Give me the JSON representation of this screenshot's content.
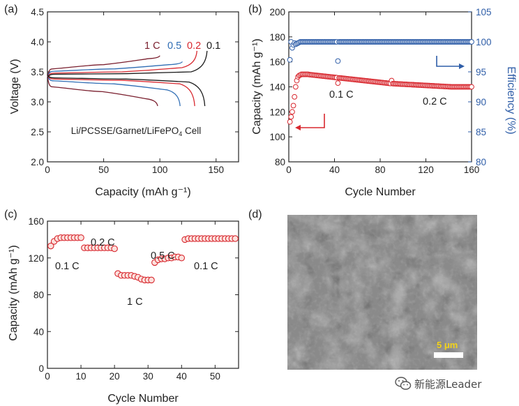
{
  "panels": {
    "a": {
      "label": "(a)",
      "chart_data": {
        "type": "line",
        "xlabel": "Capacity (mAh g⁻¹)",
        "ylabel": "Voltage (V)",
        "xlim": [
          0,
          170
        ],
        "ylim": [
          2.0,
          4.5
        ],
        "xticks": [
          0,
          50,
          100,
          150
        ],
        "yticks": [
          2.0,
          2.5,
          3.0,
          3.5,
          4.0,
          4.5
        ],
        "annotation": "Li/PCSSE/Garnet/LiFePO",
        "annotation_sub": "4",
        "annotation_tail": " Cell",
        "series": [
          {
            "name": "1 C",
            "color": "#7a1f2e",
            "charge_end": 100,
            "charge_v": [
              3.55,
              3.62,
              3.72,
              3.77
            ],
            "discharge_end": 98,
            "discharge_v": [
              3.25,
              3.17,
              3.05,
              2.93
            ]
          },
          {
            "name": "0.5",
            "color": "#2f6db4",
            "charge_end": 120,
            "charge_v": [
              3.51,
              3.55,
              3.62,
              3.67
            ],
            "discharge_end": 118,
            "discharge_v": [
              3.35,
              3.3,
              3.2,
              2.93
            ]
          },
          {
            "name": "0.2",
            "color": "#d8282f",
            "charge_end": 133,
            "charge_v": [
              3.48,
              3.5,
              3.57,
              3.85
            ],
            "discharge_end": 131,
            "discharge_v": [
              3.38,
              3.36,
              3.3,
              2.93
            ]
          },
          {
            "name": "0.1",
            "color": "#1a1a1a",
            "charge_end": 142,
            "charge_v": [
              3.46,
              3.47,
              3.5,
              3.85
            ],
            "discharge_end": 140,
            "discharge_v": [
              3.4,
              3.38,
              3.33,
              2.93
            ]
          }
        ],
        "label_colors": [
          "#7a1f2e",
          "#2f6db4",
          "#d8282f",
          "#1a1a1a"
        ]
      }
    },
    "b": {
      "label": "(b)",
      "chart_data": {
        "type": "scatter",
        "xlabel": "Cycle Number",
        "ylabel": "Capacity (mAh g⁻¹)",
        "y2label": "Efficiency (%)",
        "xlim": [
          0,
          160
        ],
        "ylim": [
          80,
          200
        ],
        "y2lim": [
          80,
          105
        ],
        "xticks": [
          0,
          40,
          80,
          120,
          160
        ],
        "yticks": [
          80,
          100,
          120,
          140,
          160,
          180,
          200
        ],
        "y2ticks": [
          80,
          85,
          90,
          95,
          100,
          105
        ],
        "capacity_color": "#d8282f",
        "efficiency_color": "#2f5ea8",
        "capacity": [
          112,
          116,
          120,
          125,
          132,
          140,
          145,
          148,
          149,
          149.5,
          150,
          150,
          150,
          150,
          150,
          150,
          150,
          149.8,
          149.7,
          149.6,
          149.5,
          149.4,
          149.3,
          149.2,
          149.1,
          149,
          148.9,
          148.8,
          148.7,
          148.6,
          148.5,
          148.4,
          148.3,
          148.2,
          148.1,
          148,
          147.9,
          147.8,
          147.7,
          147.6,
          147.5,
          147.4,
          143,
          147.2,
          147.1,
          147,
          146.9,
          146.8,
          146.7,
          146.6,
          146.5,
          146.4,
          146.3,
          146.2,
          146.1,
          146,
          145.9,
          145.8,
          145.7,
          145.6,
          145.5,
          145.4,
          145.3,
          145.2,
          145.1,
          145,
          144.9,
          144.8,
          144.7,
          144.6,
          144.5,
          144.4,
          144.3,
          144.2,
          144.1,
          144,
          143.9,
          143.8,
          143.7,
          143.6,
          143.5,
          143.4,
          143.3,
          143.2,
          143.1,
          143,
          142.9,
          142.8,
          142.7,
          145,
          142.6,
          142.5,
          142.5,
          142.4,
          142.4,
          142.3,
          142.3,
          142.2,
          142.2,
          142.1,
          142.1,
          142,
          142,
          141.9,
          141.9,
          141.8,
          141.8,
          141.7,
          141.7,
          141.6,
          141.6,
          141.5,
          141.5,
          141.4,
          141.4,
          141.3,
          141.3,
          141.2,
          141.2,
          141.1,
          141.1,
          141,
          141,
          140.9,
          140.9,
          140.8,
          140.8,
          140.7,
          140.7,
          140.6,
          140.6,
          140.5,
          140.5,
          140.4,
          140.4,
          140.3,
          140.3,
          140.2,
          140.2,
          140.1,
          140.1,
          140,
          140,
          140,
          140,
          140,
          140,
          140,
          140,
          140,
          140,
          140,
          140,
          140,
          140,
          140,
          140,
          140,
          140,
          140
        ],
        "efficiency": [
          97,
          100,
          99,
          99.5,
          99.8,
          99.6,
          99.7,
          99.8,
          99.9,
          100,
          100,
          100,
          100,
          100,
          100,
          100,
          100,
          100,
          100,
          100,
          100,
          100,
          100,
          100,
          100,
          100,
          100,
          100,
          100,
          100,
          100,
          100,
          100,
          100,
          100,
          100,
          100,
          100,
          100,
          100,
          100,
          100,
          96.8,
          100,
          100,
          100,
          100,
          100,
          100,
          100,
          100,
          100,
          100,
          100,
          100,
          100,
          100,
          100,
          100,
          100,
          100,
          100,
          100,
          100,
          100,
          100,
          100,
          100,
          100,
          100,
          100,
          100,
          100,
          100,
          100,
          100,
          100,
          100,
          100,
          100,
          100,
          100,
          100,
          100,
          100,
          100,
          100,
          100,
          100,
          100,
          100,
          100,
          100,
          100,
          100,
          100,
          100,
          100,
          100,
          100,
          100,
          100,
          100,
          100,
          100,
          100,
          100,
          100,
          100,
          100,
          100,
          100,
          100,
          100,
          100,
          100,
          100,
          100,
          100,
          100,
          100,
          100,
          100,
          100,
          100,
          100,
          100,
          100,
          100,
          100,
          100,
          100,
          100,
          100,
          100,
          100,
          100,
          100,
          100,
          100,
          100,
          100,
          100,
          100,
          100,
          100,
          100,
          100,
          100,
          100,
          100,
          100,
          100,
          100,
          100,
          100,
          100,
          100,
          100,
          100
        ],
        "annotations": [
          "0.1 C",
          "0.2 C"
        ]
      }
    },
    "c": {
      "label": "(c)",
      "chart_data": {
        "type": "scatter",
        "xlabel": "Cycle Number",
        "ylabel": "Capacity (mAh g⁻¹)",
        "xlim": [
          0,
          57
        ],
        "ylim": [
          0,
          160
        ],
        "xticks": [
          0,
          10,
          20,
          30,
          40,
          50
        ],
        "yticks": [
          0,
          40,
          80,
          120,
          160
        ],
        "color": "#d8282f",
        "x": [
          1,
          2,
          3,
          4,
          5,
          6,
          7,
          8,
          9,
          10,
          11,
          12,
          13,
          14,
          15,
          16,
          17,
          18,
          19,
          20,
          21,
          22,
          23,
          24,
          25,
          26,
          27,
          28,
          29,
          30,
          31,
          32,
          33,
          34,
          35,
          36,
          37,
          38,
          39,
          40,
          41,
          42,
          43,
          44,
          45,
          46,
          47,
          48,
          49,
          50,
          51,
          52,
          53,
          54,
          55,
          56
        ],
        "y": [
          133,
          138,
          141,
          142,
          142,
          142,
          142,
          142,
          142,
          142,
          131,
          131,
          131,
          131,
          131,
          131,
          131,
          131,
          131,
          130,
          103,
          101,
          101,
          101,
          101,
          100,
          99,
          97,
          96,
          96,
          96,
          115,
          118,
          119,
          119,
          120,
          120,
          121,
          121,
          120,
          140,
          141,
          141,
          141,
          141,
          141,
          141,
          141,
          141,
          141,
          141,
          141,
          141,
          141,
          141,
          141
        ],
        "annotations": [
          "0.1 C",
          "0.2 C",
          "1 C",
          "0.5 C",
          "0.1 C"
        ]
      }
    },
    "d": {
      "label": "(d)",
      "scale_bar": "5 μm",
      "scale_color": "#f2d21a"
    }
  },
  "watermark": "新能源Leader"
}
